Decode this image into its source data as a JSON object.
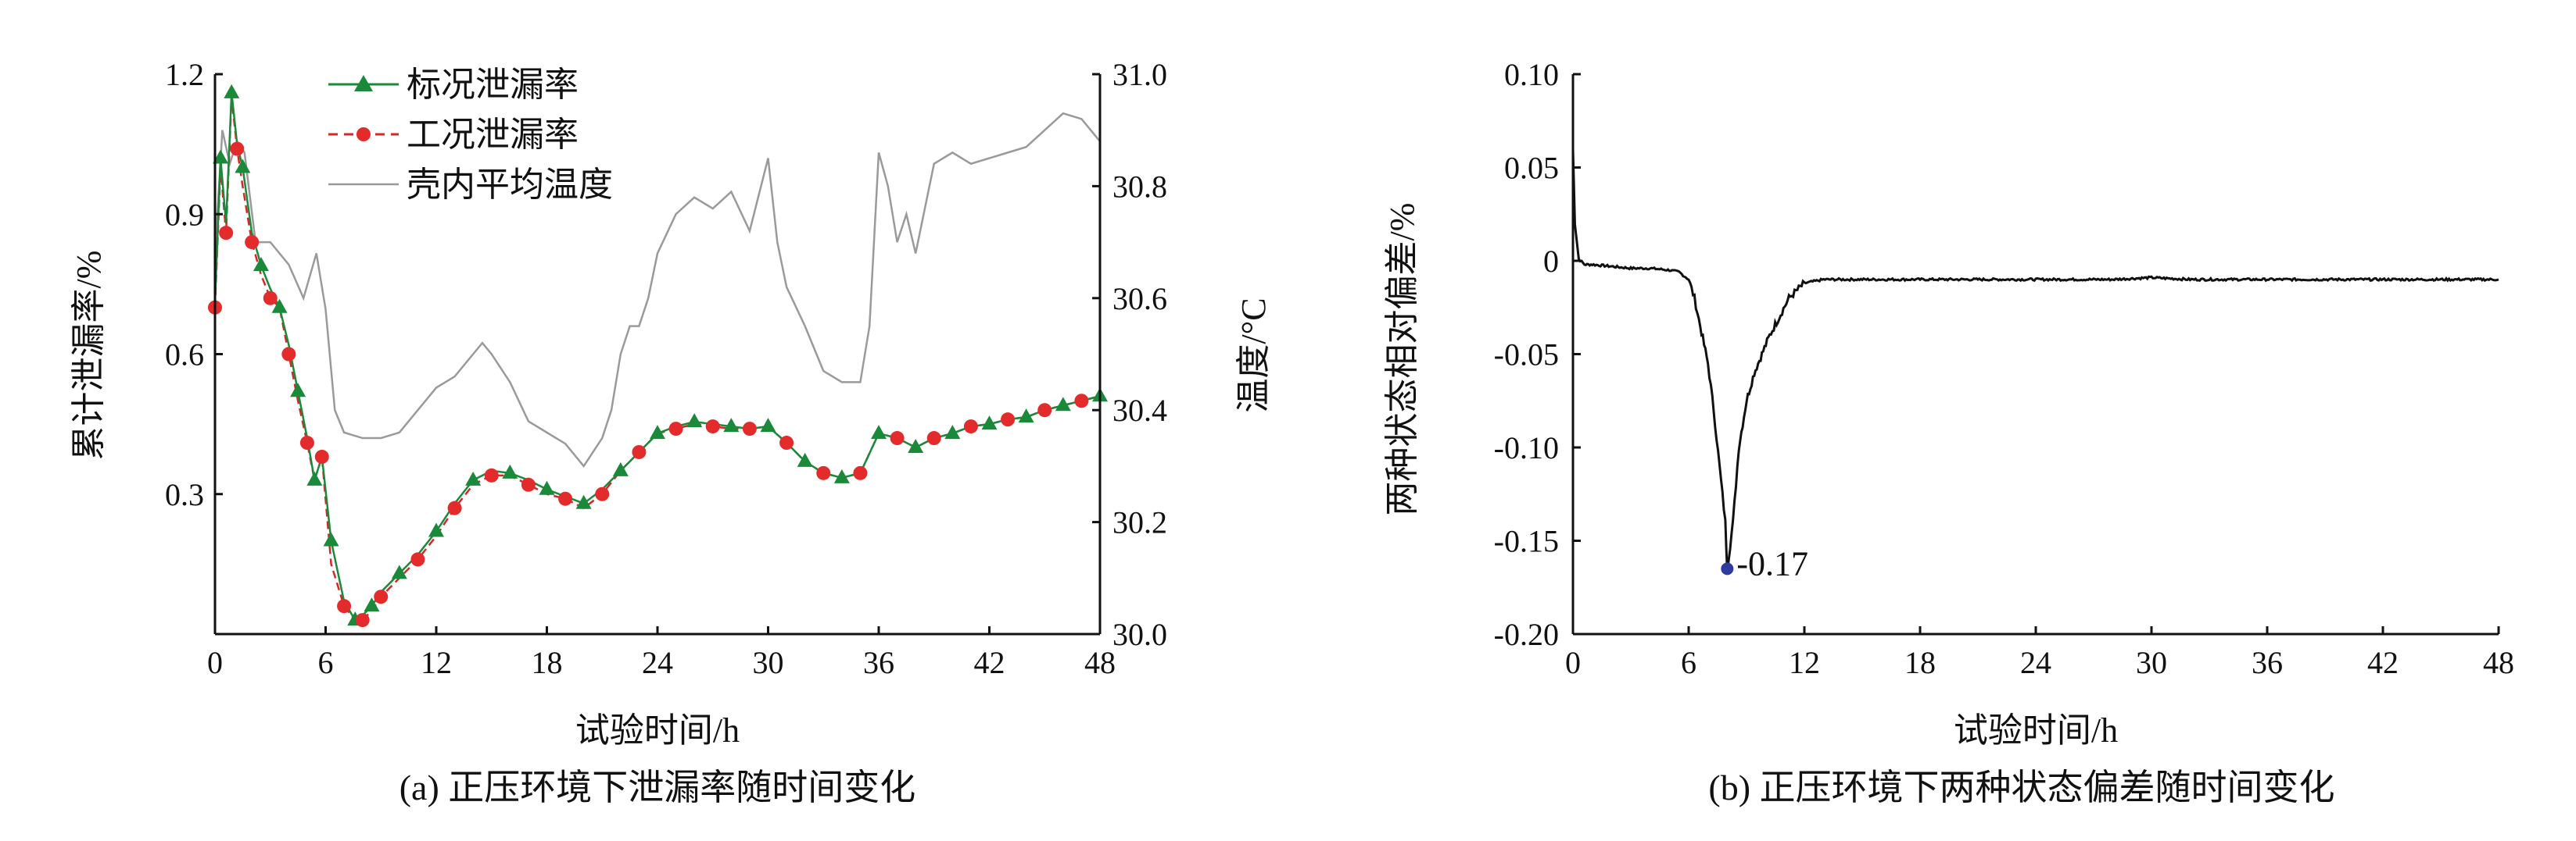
{
  "chart_data": [
    {
      "type": "line",
      "caption": "(a) 正压环境下泄漏率随时间变化",
      "xlabel": "试验时间/h",
      "ylabel": "累计泄漏率/%",
      "y2label": "温度/°C",
      "xlim": [
        0,
        48
      ],
      "ylim": [
        0,
        1.2
      ],
      "y2lim": [
        30.0,
        31.0
      ],
      "x_ticks": [
        "0",
        "6",
        "12",
        "18",
        "24",
        "30",
        "36",
        "42",
        "48"
      ],
      "y_ticks": [
        "0.3",
        "0.6",
        "0.9",
        "1.2"
      ],
      "y2_ticks": [
        "30.0",
        "30.2",
        "30.4",
        "30.6",
        "30.8",
        "31.0"
      ],
      "legend_position": "top-left",
      "series": [
        {
          "name": "标况泄漏率",
          "color": "#1a8a3a",
          "marker": "triangle",
          "x": [
            0,
            0.3,
            0.6,
            0.9,
            1.2,
            1.5,
            2.0,
            2.5,
            3.0,
            3.5,
            4.0,
            4.5,
            5.0,
            5.4,
            5.8,
            6.3,
            7.0,
            7.6,
            8.0,
            8.5,
            9.0,
            10.0,
            11.0,
            12.0,
            13.0,
            14.0,
            15.0,
            16.0,
            17.0,
            18.0,
            19.0,
            20.0,
            21.0,
            22.0,
            23.0,
            24.0,
            25.0,
            26.0,
            27.0,
            28.0,
            29.0,
            30.0,
            31.0,
            32.0,
            33.0,
            34.0,
            35.0,
            36.0,
            37.0,
            38.0,
            39.0,
            40.0,
            41.0,
            42.0,
            43.0,
            44.0,
            45.0,
            46.0,
            47.0,
            48.0
          ],
          "y": [
            0.71,
            1.02,
            0.88,
            1.16,
            1.05,
            1.0,
            0.86,
            0.79,
            0.74,
            0.7,
            0.62,
            0.52,
            0.42,
            0.33,
            0.38,
            0.2,
            0.07,
            0.03,
            0.04,
            0.06,
            0.09,
            0.13,
            0.17,
            0.22,
            0.28,
            0.33,
            0.35,
            0.345,
            0.33,
            0.31,
            0.295,
            0.28,
            0.31,
            0.35,
            0.39,
            0.43,
            0.445,
            0.455,
            0.45,
            0.445,
            0.44,
            0.445,
            0.41,
            0.37,
            0.345,
            0.335,
            0.345,
            0.43,
            0.42,
            0.4,
            0.42,
            0.43,
            0.445,
            0.45,
            0.46,
            0.465,
            0.48,
            0.49,
            0.5,
            0.51
          ]
        },
        {
          "name": "工况泄漏率",
          "color": "#d62728",
          "marker": "circle",
          "x": [
            0,
            0.3,
            0.6,
            0.9,
            1.2,
            1.5,
            2.0,
            2.5,
            3.0,
            3.5,
            4.0,
            4.5,
            5.0,
            5.4,
            5.8,
            6.3,
            7.0,
            7.6,
            8.0,
            8.5,
            9.0,
            10.0,
            11.0,
            12.0,
            13.0,
            14.0,
            15.0,
            16.0,
            17.0,
            18.0,
            19.0,
            20.0,
            21.0,
            22.0,
            23.0,
            24.0,
            25.0,
            26.0,
            27.0,
            28.0,
            29.0,
            30.0,
            31.0,
            32.0,
            33.0,
            34.0,
            35.0,
            36.0,
            37.0,
            38.0,
            39.0,
            40.0,
            41.0,
            42.0,
            43.0,
            44.0,
            45.0,
            46.0,
            47.0,
            48.0
          ],
          "y": [
            0.7,
            1.0,
            0.86,
            1.15,
            1.04,
            0.96,
            0.84,
            0.77,
            0.72,
            0.7,
            0.6,
            0.5,
            0.41,
            0.33,
            0.38,
            0.15,
            0.06,
            0.03,
            0.03,
            0.05,
            0.08,
            0.12,
            0.16,
            0.21,
            0.27,
            0.32,
            0.34,
            0.34,
            0.32,
            0.3,
            0.29,
            0.27,
            0.3,
            0.35,
            0.39,
            0.43,
            0.44,
            0.45,
            0.445,
            0.44,
            0.44,
            0.445,
            0.41,
            0.37,
            0.345,
            0.335,
            0.345,
            0.43,
            0.42,
            0.4,
            0.42,
            0.43,
            0.445,
            0.45,
            0.46,
            0.465,
            0.48,
            0.49,
            0.5,
            0.51
          ]
        },
        {
          "name": "壳内平均温度",
          "color": "#9a9a9a",
          "axis": "right",
          "x": [
            0,
            0.4,
            0.8,
            1.2,
            1.6,
            2.2,
            3.0,
            4.0,
            4.8,
            5.5,
            6.0,
            6.5,
            7.0,
            8.0,
            9.0,
            10.0,
            11.0,
            12.0,
            13.0,
            14.0,
            14.5,
            15.0,
            16.0,
            17.0,
            18.0,
            19.0,
            20.0,
            21.0,
            21.5,
            22.0,
            22.5,
            23.0,
            23.5,
            24.0,
            25.0,
            26.0,
            27.0,
            28.0,
            29.0,
            30.0,
            30.5,
            31.0,
            32.0,
            33.0,
            34.0,
            35.0,
            35.5,
            36.0,
            36.5,
            37.0,
            37.5,
            38.0,
            39.0,
            40.0,
            41.0,
            42.0,
            43.0,
            44.0,
            45.0,
            46.0,
            47.0,
            48.0
          ],
          "y": [
            30.68,
            30.9,
            30.84,
            30.88,
            30.86,
            30.7,
            30.7,
            30.66,
            30.6,
            30.68,
            30.58,
            30.4,
            30.36,
            30.35,
            30.35,
            30.36,
            30.4,
            30.44,
            30.46,
            30.5,
            30.52,
            30.5,
            30.45,
            30.38,
            30.36,
            30.34,
            30.3,
            30.35,
            30.4,
            30.5,
            30.55,
            30.55,
            30.6,
            30.68,
            30.75,
            30.78,
            30.76,
            30.79,
            30.72,
            30.85,
            30.7,
            30.62,
            30.55,
            30.47,
            30.45,
            30.45,
            30.55,
            30.86,
            30.8,
            30.7,
            30.75,
            30.68,
            30.84,
            30.86,
            30.84,
            30.85,
            30.86,
            30.87,
            30.9,
            30.93,
            30.92,
            30.88
          ]
        }
      ]
    },
    {
      "type": "line",
      "caption": "(b) 正压环境下两种状态偏差随时间变化",
      "xlabel": "试验时间/h",
      "ylabel": "两种状态相对偏差/%",
      "xlim": [
        0,
        48
      ],
      "ylim": [
        -0.2,
        0.1
      ],
      "x_ticks": [
        "0",
        "6",
        "12",
        "18",
        "24",
        "30",
        "36",
        "42",
        "48"
      ],
      "y_ticks": [
        "0.10",
        "0.05",
        "0",
        "-0.05",
        "-0.10",
        "-0.15",
        "-0.20"
      ],
      "annotation": {
        "text": "-0.17",
        "x": 8.0,
        "y": -0.165
      },
      "series": [
        {
          "color": "#111111",
          "x": [
            0,
            0.1,
            0.3,
            0.6,
            1.0,
            2.0,
            3.0,
            4.0,
            5.0,
            5.5,
            6.0,
            6.3,
            6.6,
            7.0,
            7.3,
            7.6,
            7.9,
            8.0,
            8.3,
            8.6,
            9.0,
            9.4,
            9.8,
            10.2,
            10.7,
            11.2,
            12.0,
            13.0,
            14.0,
            15.0,
            16.0,
            18.0,
            20.0,
            22.0,
            24.0,
            26.0,
            28.0,
            30.0,
            32.0,
            34.0,
            36.0,
            38.0,
            40.0,
            42.0,
            44.0,
            46.0,
            48.0
          ],
          "y": [
            0.06,
            0.02,
            0.001,
            -0.002,
            -0.002,
            -0.003,
            -0.004,
            -0.004,
            -0.005,
            -0.006,
            -0.01,
            -0.02,
            -0.035,
            -0.055,
            -0.08,
            -0.11,
            -0.14,
            -0.165,
            -0.14,
            -0.1,
            -0.075,
            -0.06,
            -0.05,
            -0.04,
            -0.03,
            -0.02,
            -0.012,
            -0.01,
            -0.01,
            -0.01,
            -0.01,
            -0.01,
            -0.01,
            -0.01,
            -0.01,
            -0.01,
            -0.01,
            -0.009,
            -0.01,
            -0.01,
            -0.01,
            -0.01,
            -0.01,
            -0.01,
            -0.01,
            -0.01,
            -0.01
          ]
        }
      ]
    }
  ]
}
